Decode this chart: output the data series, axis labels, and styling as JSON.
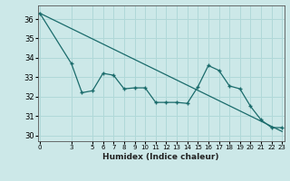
{
  "title": "",
  "xlabel": "Humidex (Indice chaleur)",
  "bg_color": "#cce8e8",
  "grid_color": "#b0d8d8",
  "line_color": "#1a6b6b",
  "x_ticks": [
    0,
    3,
    5,
    6,
    7,
    8,
    9,
    10,
    11,
    12,
    13,
    14,
    15,
    16,
    17,
    18,
    19,
    20,
    21,
    22,
    23
  ],
  "ylim": [
    29.7,
    36.7
  ],
  "xlim": [
    -0.2,
    23.2
  ],
  "data_x": [
    0,
    3,
    4,
    5,
    6,
    7,
    8,
    9,
    10,
    11,
    12,
    13,
    14,
    15,
    16,
    17,
    18,
    19,
    20,
    21,
    22,
    23
  ],
  "data_y": [
    36.3,
    33.7,
    32.2,
    32.3,
    33.2,
    33.1,
    32.4,
    32.45,
    32.45,
    31.7,
    31.7,
    31.7,
    31.65,
    32.5,
    33.6,
    33.35,
    32.55,
    32.4,
    31.5,
    30.8,
    30.4,
    30.4
  ],
  "trend_x": [
    0,
    23
  ],
  "trend_y": [
    36.3,
    30.2
  ]
}
